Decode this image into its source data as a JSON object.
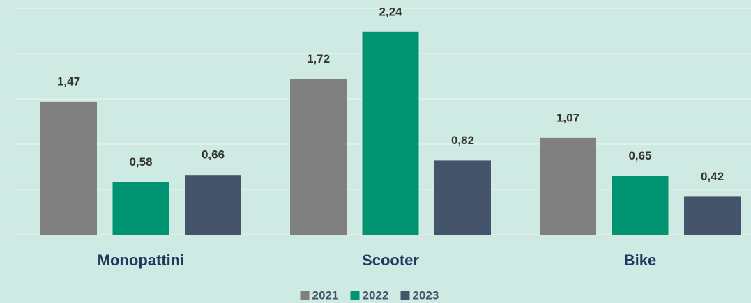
{
  "chart_data": {
    "type": "bar",
    "categories": [
      "Monopattini",
      "Scooter",
      "Bike"
    ],
    "series": [
      {
        "name": "2021",
        "color": "#808080",
        "values": [
          1.47,
          1.72,
          1.07
        ],
        "value_labels": [
          "1,47",
          "1,72",
          "1,07"
        ]
      },
      {
        "name": "2022",
        "color": "#009473",
        "values": [
          0.58,
          2.24,
          0.65
        ],
        "value_labels": [
          "0,58",
          "2,24",
          "0,65"
        ]
      },
      {
        "name": "2023",
        "color": "#44546a",
        "values": [
          0.66,
          0.82,
          0.42
        ],
        "value_labels": [
          "0,66",
          "0,82",
          "0,42"
        ]
      }
    ],
    "ylim": [
      0,
      2.5
    ],
    "yticks": [
      0,
      0.5,
      1,
      1.5,
      2,
      2.5
    ],
    "grid": true,
    "legend": "bottom"
  }
}
